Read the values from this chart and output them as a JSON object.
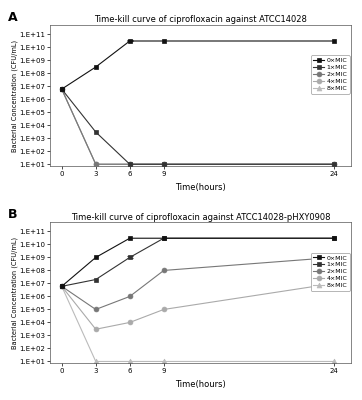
{
  "title_A": "Time-kill curve of ciprofloxacin against ATCC14028",
  "title_B": "Time-kill curve of ciprofloxacin against ATCC14028-pHXY0908",
  "xlabel": "Time(hours)",
  "ylabel": "Bacterial Concentration (CFU/mL)",
  "time_points": [
    0,
    3,
    6,
    9,
    24
  ],
  "panel_A": {
    "0xMIC": [
      6000000.0,
      300000000.0,
      30000000000.0,
      30000000000.0,
      30000000000.0
    ],
    "1xMIC": [
      6000000.0,
      3000.0,
      10,
      10,
      10
    ],
    "2xMIC": [
      6000000.0,
      10,
      10,
      10,
      10
    ],
    "4xMIC": [
      6000000.0,
      10,
      10,
      10,
      10
    ],
    "8xMIC": [
      6000000.0,
      10,
      10,
      10,
      10
    ]
  },
  "panel_B": {
    "0xMIC": [
      6000000.0,
      1000000000.0,
      30000000000.0,
      30000000000.0,
      30000000000.0
    ],
    "1xMIC": [
      6000000.0,
      20000000.0,
      1000000000.0,
      30000000000.0,
      30000000000.0
    ],
    "2xMIC": [
      6000000.0,
      100000.0,
      1000000.0,
      100000000.0,
      1000000000.0
    ],
    "4xMIC": [
      6000000.0,
      3000.0,
      10000.0,
      100000.0,
      10000000.0
    ],
    "8xMIC": [
      6000000.0,
      10,
      10,
      10,
      10
    ]
  },
  "panel_A_errors": {
    "0xMIC": [
      0,
      0,
      3000000000.0,
      0,
      0
    ],
    "1xMIC": [
      0,
      0,
      0,
      0,
      0
    ],
    "2xMIC": [
      0,
      0,
      0,
      0,
      0
    ],
    "4xMIC": [
      0,
      0,
      0,
      0,
      0
    ],
    "8xMIC": [
      0,
      0,
      0,
      0,
      0
    ]
  },
  "panel_B_errors": {
    "0xMIC": [
      0,
      0,
      0,
      0,
      0
    ],
    "1xMIC": [
      0,
      0,
      400000000.0,
      0,
      0
    ],
    "2xMIC": [
      0,
      0,
      0,
      0,
      0
    ],
    "4xMIC": [
      0,
      0,
      0,
      0,
      0
    ],
    "8xMIC": [
      0,
      0,
      0,
      0,
      0
    ]
  },
  "series_styles": {
    "0xMIC": {
      "color": "#111111",
      "marker": "s",
      "markersize": 3.5,
      "label": "0×MIC",
      "zorder": 5
    },
    "1xMIC": {
      "color": "#333333",
      "marker": "s",
      "markersize": 3.5,
      "label": "1×MIC",
      "zorder": 4
    },
    "2xMIC": {
      "color": "#777777",
      "marker": "o",
      "markersize": 3.5,
      "label": "2×MIC",
      "zorder": 3
    },
    "4xMIC": {
      "color": "#aaaaaa",
      "marker": "o",
      "markersize": 3.5,
      "label": "4×MIC",
      "zorder": 2
    },
    "8xMIC": {
      "color": "#bbbbbb",
      "marker": "^",
      "markersize": 3.5,
      "label": "8×MIC",
      "zorder": 1
    }
  },
  "ylim": [
    7,
    500000000000.0
  ],
  "yticks": [
    10.0,
    100.0,
    1000.0,
    10000.0,
    100000.0,
    1000000.0,
    10000000.0,
    100000000.0,
    1000000000.0,
    10000000000.0,
    100000000000.0
  ],
  "ytick_labels": [
    "1.E+01",
    "1.E+02",
    "1.E+03",
    "1.E+04",
    "1.E+05",
    "1.E+06",
    "1.E+07",
    "1.E+08",
    "1.E+09",
    "1.E+10",
    "1.E+11"
  ],
  "xticks": [
    0,
    3,
    6,
    9,
    24
  ],
  "background_color": "#ffffff",
  "label_A": "A",
  "label_B": "B"
}
